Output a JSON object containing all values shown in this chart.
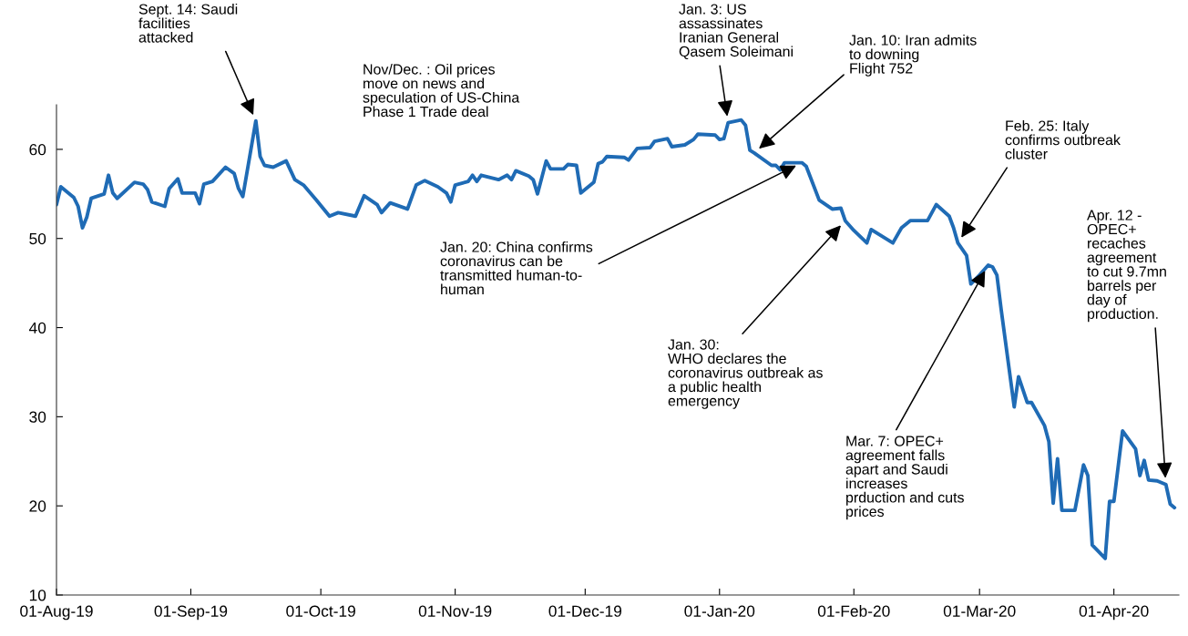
{
  "chart_data": {
    "type": "line",
    "x": [
      "2019-08-01",
      "2019-08-02",
      "2019-08-05",
      "2019-08-06",
      "2019-08-07",
      "2019-08-08",
      "2019-08-09",
      "2019-08-12",
      "2019-08-13",
      "2019-08-14",
      "2019-08-15",
      "2019-08-19",
      "2019-08-21",
      "2019-08-22",
      "2019-08-23",
      "2019-08-26",
      "2019-08-27",
      "2019-08-29",
      "2019-08-30",
      "2019-09-02",
      "2019-09-03",
      "2019-09-04",
      "2019-09-06",
      "2019-09-09",
      "2019-09-11",
      "2019-09-12",
      "2019-09-13",
      "2019-09-16",
      "2019-09-17",
      "2019-09-18",
      "2019-09-20",
      "2019-09-23",
      "2019-09-25",
      "2019-09-27",
      "2019-09-30",
      "2019-10-03",
      "2019-10-05",
      "2019-10-09",
      "2019-10-11",
      "2019-10-14",
      "2019-10-15",
      "2019-10-17",
      "2019-10-21",
      "2019-10-23",
      "2019-10-25",
      "2019-10-28",
      "2019-10-30",
      "2019-10-31",
      "2019-11-01",
      "2019-11-04",
      "2019-11-05",
      "2019-11-06",
      "2019-11-07",
      "2019-11-11",
      "2019-11-13",
      "2019-11-14",
      "2019-11-15",
      "2019-11-18",
      "2019-11-19",
      "2019-11-20",
      "2019-11-22",
      "2019-11-23",
      "2019-11-26",
      "2019-11-27",
      "2019-11-29",
      "2019-11-30",
      "2019-12-03",
      "2019-12-04",
      "2019-12-05",
      "2019-12-06",
      "2019-12-10",
      "2019-12-11",
      "2019-12-13",
      "2019-12-16",
      "2019-12-17",
      "2019-12-19",
      "2019-12-20",
      "2019-12-21",
      "2019-12-24",
      "2019-12-26",
      "2019-12-27",
      "2019-12-31",
      "2020-01-01",
      "2020-01-02",
      "2020-01-03",
      "2020-01-06",
      "2020-01-07",
      "2020-01-08",
      "2020-01-09",
      "2020-01-13",
      "2020-01-14",
      "2020-01-15",
      "2020-01-16",
      "2020-01-20",
      "2020-01-21",
      "2020-01-24",
      "2020-01-27",
      "2020-01-29",
      "2020-01-30",
      "2020-02-01",
      "2020-02-04",
      "2020-02-05",
      "2020-02-10",
      "2020-02-12",
      "2020-02-14",
      "2020-02-18",
      "2020-02-20",
      "2020-02-23",
      "2020-02-24",
      "2020-02-25",
      "2020-02-27",
      "2020-02-28",
      "2020-03-01",
      "2020-03-03",
      "2020-03-04",
      "2020-03-05",
      "2020-03-06",
      "2020-03-09",
      "2020-03-10",
      "2020-03-12",
      "2020-03-13",
      "2020-03-16",
      "2020-03-17",
      "2020-03-18",
      "2020-03-19",
      "2020-03-20",
      "2020-03-23",
      "2020-03-25",
      "2020-03-26",
      "2020-03-27",
      "2020-03-30",
      "2020-03-31",
      "2020-04-01",
      "2020-04-03",
      "2020-04-06",
      "2020-04-07",
      "2020-04-08",
      "2020-04-09",
      "2020-04-11",
      "2020-04-13",
      "2020-04-14",
      "2020-04-15"
    ],
    "series": [
      {
        "color": "#1f6bb5",
        "values": [
          53.8,
          55.8,
          54.6,
          53.6,
          51.2,
          52.4,
          54.5,
          55.0,
          57.1,
          55.1,
          54.5,
          56.3,
          56.1,
          55.5,
          54.1,
          53.6,
          55.6,
          56.7,
          55.1,
          55.1,
          53.9,
          56.1,
          56.4,
          58.0,
          57.3,
          55.6,
          54.7,
          63.2,
          59.2,
          58.2,
          58.0,
          58.7,
          56.6,
          56.0,
          54.3,
          52.5,
          52.9,
          52.5,
          54.8,
          53.8,
          52.9,
          54.0,
          53.3,
          56.0,
          56.5,
          55.8,
          55.1,
          54.1,
          56.0,
          56.4,
          57.1,
          56.4,
          57.1,
          56.6,
          57.1,
          56.6,
          57.6,
          57.0,
          56.6,
          55.0,
          58.7,
          57.8,
          57.8,
          58.3,
          58.2,
          55.1,
          56.3,
          58.4,
          58.6,
          59.2,
          59.1,
          58.8,
          60.1,
          60.2,
          60.9,
          61.1,
          61.2,
          60.3,
          60.5,
          61.1,
          61.7,
          61.6,
          61.1,
          61.2,
          63.0,
          63.3,
          62.7,
          59.9,
          59.6,
          58.2,
          58.2,
          57.7,
          58.5,
          58.5,
          58.1,
          54.3,
          53.3,
          53.4,
          52.0,
          50.9,
          49.5,
          51.0,
          49.5,
          51.2,
          52.0,
          52.0,
          53.8,
          52.5,
          51.2,
          49.5,
          48.1,
          44.9,
          45.9,
          47.0,
          46.8,
          45.9,
          42.0,
          31.1,
          34.5,
          31.6,
          31.6,
          29.0,
          27.2,
          20.3,
          25.3,
          19.5,
          19.5,
          24.6,
          23.4,
          15.6,
          14.1,
          20.5,
          20.5,
          28.4,
          26.4,
          23.4,
          25.1,
          22.9,
          22.8,
          22.4,
          20.2,
          19.8
        ]
      }
    ],
    "xlim": [
      "2019-08-01",
      "2020-04-16"
    ],
    "xticks": [
      {
        "value": "2019-08-01",
        "label": "01-Aug-19"
      },
      {
        "value": "2019-09-01",
        "label": "01-Sep-19"
      },
      {
        "value": "2019-10-01",
        "label": "01-Oct-19"
      },
      {
        "value": "2019-11-01",
        "label": "01-Nov-19"
      },
      {
        "value": "2019-12-01",
        "label": "01-Dec-19"
      },
      {
        "value": "2020-01-01",
        "label": "01-Jan-20"
      },
      {
        "value": "2020-02-01",
        "label": "01-Feb-20"
      },
      {
        "value": "2020-03-01",
        "label": "01-Mar-20"
      },
      {
        "value": "2020-04-01",
        "label": "01-Apr-20"
      }
    ],
    "ylim": [
      10,
      65
    ],
    "yticks": [
      10,
      20,
      30,
      40,
      50,
      60
    ],
    "grid": false,
    "marker": "none",
    "line_style": "solid",
    "annotations": [
      {
        "text": "Sept. 14: Saudi\nfacilities\nattacked",
        "x": "2019-09-16",
        "y": 63.2
      },
      "Nov/Dec. : Oil prices\nmove on news and\nspeculation of US-China\nPhase 1 Trade deal",
      {
        "text": "Jan. 3: US\nassassinates\nIranian General\nQasem Soleimani",
        "x": "2020-01-03",
        "y": 63.0
      },
      {
        "text": "Jan. 10: Iran admits\nto downing\nFlight 752",
        "x": "2020-01-09",
        "y": 59.6
      },
      {
        "text": "Jan. 20: China confirms\ncoronavirus can be\ntransmitted human-to-\nhuman",
        "x": "2020-01-20",
        "y": 58.5
      },
      {
        "text": "Jan. 30:\nWHO declares the\ncoronavirus outbreak as\na public health\nemergency",
        "x": "2020-01-30",
        "y": 52.0
      },
      {
        "text": "Feb. 25: Italy\nconfirms outbreak\ncluster",
        "x": "2020-02-25",
        "y": 49.5
      },
      {
        "text": "Mar. 7: OPEC+\nagreement falls\napart and Saudi\nincreases\nprduction and cuts\nprices",
        "x": "2020-03-03",
        "y": 47.0
      },
      {
        "text": "Apr. 12 -\nOPEC+\nrecaches\nagreement\nto cut 9.7mn\nbarrels per\nday of\nproduction.",
        "x": "2020-04-13",
        "y": 22.4
      }
    ]
  }
}
